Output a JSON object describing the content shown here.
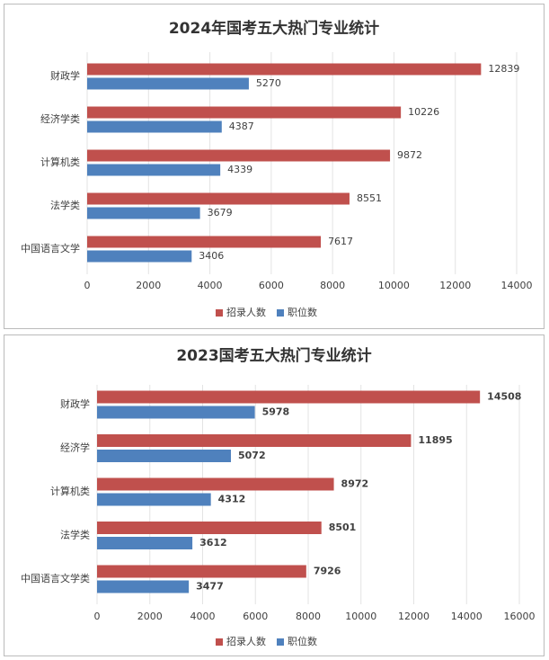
{
  "chart_data": [
    {
      "type": "barh",
      "title": "2024年国考五大热门专业统计",
      "categories": [
        "财政学",
        "经济学类",
        "计算机类",
        "法学类",
        "中国语言文学"
      ],
      "series": [
        {
          "name": "招录人数",
          "color": "#c0504d",
          "values": [
            12839,
            10226,
            9872,
            8551,
            7617
          ]
        },
        {
          "name": "职位数",
          "color": "#4f81bd",
          "values": [
            5270,
            4387,
            4339,
            3679,
            3406
          ]
        }
      ],
      "xlim": [
        0,
        14000
      ],
      "xticks": [
        0,
        2000,
        4000,
        6000,
        8000,
        10000,
        12000,
        14000
      ],
      "grid": true,
      "legend": "bottom"
    },
    {
      "type": "barh",
      "title": "2023国考五大热门专业统计",
      "categories": [
        "财政学",
        "经济学",
        "计算机类",
        "法学类",
        "中国语言文学类"
      ],
      "series": [
        {
          "name": "招录人数",
          "color": "#c0504d",
          "values": [
            14508,
            11895,
            8972,
            8501,
            7926
          ]
        },
        {
          "name": "职位数",
          "color": "#4f81bd",
          "values": [
            5978,
            5072,
            4312,
            3612,
            3477
          ]
        }
      ],
      "xlim": [
        0,
        16000
      ],
      "xticks": [
        0,
        2000,
        4000,
        6000,
        8000,
        10000,
        12000,
        14000,
        16000
      ],
      "grid": true,
      "legend": "bottom"
    }
  ]
}
